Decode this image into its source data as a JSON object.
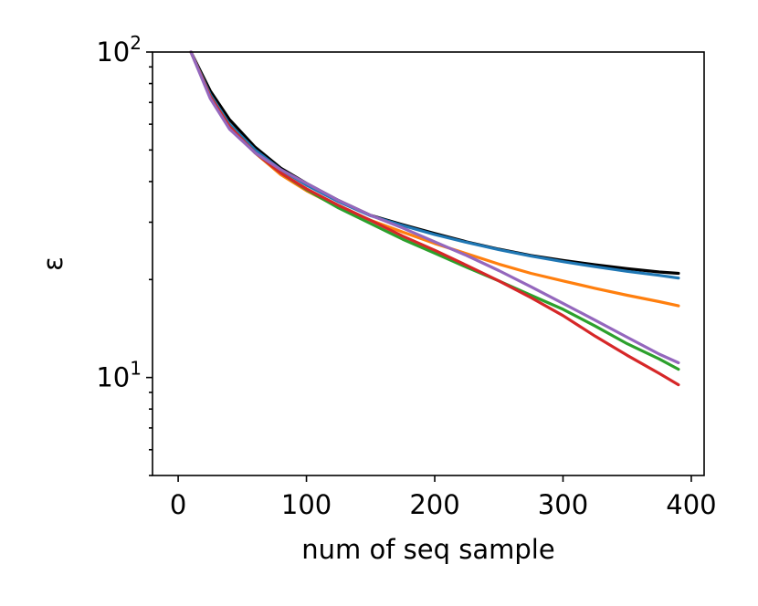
{
  "chart_data": {
    "type": "line",
    "title": "",
    "xlabel": "num of seq sample",
    "ylabel": "ε",
    "yscale": "log",
    "xlim": [
      -20,
      410
    ],
    "ylim": [
      5,
      100
    ],
    "grid": false,
    "xticks": [
      0,
      100,
      200,
      300,
      400
    ],
    "xtick_labels": [
      "0",
      "100",
      "200",
      "300",
      "400"
    ],
    "yticks": [
      {
        "value": 10,
        "base": "10",
        "exp": "1"
      },
      {
        "value": 100,
        "base": "10",
        "exp": "2"
      }
    ],
    "x": [
      10,
      25,
      40,
      60,
      80,
      100,
      125,
      150,
      175,
      200,
      225,
      250,
      275,
      300,
      325,
      350,
      375,
      390
    ],
    "series": [
      {
        "name": "black",
        "color": "#000000",
        "values": [
          100,
          76,
          62,
          51,
          44,
          39.5,
          35,
          31.5,
          29.5,
          27.7,
          26.1,
          24.8,
          23.7,
          22.9,
          22.2,
          21.6,
          21.1,
          20.9
        ]
      },
      {
        "name": "blue",
        "color": "#1f77b4",
        "values": [
          100,
          74,
          60,
          50,
          43.5,
          39,
          34.7,
          31.4,
          29.3,
          27.5,
          26,
          24.7,
          23.6,
          22.7,
          21.9,
          21.2,
          20.6,
          20.2
        ]
      },
      {
        "name": "orange",
        "color": "#ff7f0e",
        "values": [
          100,
          73,
          59,
          49,
          42,
          37.5,
          33.4,
          30.4,
          28,
          25.8,
          24,
          22.3,
          20.9,
          19.8,
          18.8,
          17.9,
          17.1,
          16.6
        ]
      },
      {
        "name": "green",
        "color": "#2ca02c",
        "values": [
          100,
          73,
          59,
          49,
          42.5,
          37.8,
          33.2,
          29.7,
          26.6,
          24.1,
          21.8,
          19.8,
          17.9,
          16.2,
          14.4,
          12.7,
          11.4,
          10.6
        ]
      },
      {
        "name": "red",
        "color": "#d62728",
        "values": [
          100,
          73,
          59,
          49,
          42.5,
          38,
          33.8,
          30.4,
          27.2,
          24.6,
          22.1,
          19.8,
          17.6,
          15.5,
          13.4,
          11.7,
          10.3,
          9.5
        ]
      },
      {
        "name": "purple",
        "color": "#9467bd",
        "values": [
          100,
          72,
          58,
          49,
          43.5,
          39.5,
          35,
          31.5,
          28.8,
          26.1,
          23.7,
          21.3,
          19,
          16.9,
          15,
          13.3,
          11.8,
          11.1
        ]
      }
    ]
  }
}
